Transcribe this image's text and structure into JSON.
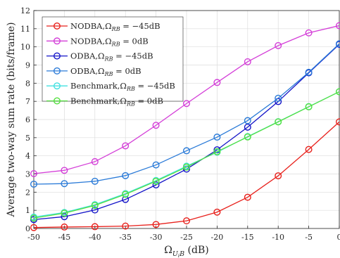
{
  "chart_data": {
    "type": "line",
    "xlabel": "Ω_{U_iB} (dB)",
    "xlabel_main": "Ω",
    "xlabel_sub": "U",
    "xlabel_subsub": "i",
    "xlabel_sub2": "B",
    "xlabel_unit": " (dB)",
    "ylabel": "Average two-way sum rate (bits/frame)",
    "xlim": [
      -50,
      0
    ],
    "ylim": [
      0,
      12
    ],
    "xticks": [
      -50,
      -45,
      -40,
      -35,
      -30,
      -25,
      -20,
      -15,
      -10,
      -5,
      0
    ],
    "yticks": [
      0,
      1,
      2,
      3,
      4,
      5,
      6,
      7,
      8,
      9,
      10,
      11,
      12
    ],
    "grid": true,
    "legend_position": "top-left",
    "x": [
      -50,
      -45,
      -40,
      -35,
      -30,
      -25,
      -20,
      -15,
      -10,
      -5,
      0
    ],
    "series": [
      {
        "name": "NODBA,Ω_{RB} = -45dB",
        "label_main": "NODBA,Ω",
        "label_sub": "RB",
        "label_tail": " = −45dB",
        "color": "#e8211c",
        "values": [
          0.05,
          0.08,
          0.1,
          0.13,
          0.22,
          0.42,
          0.9,
          1.72,
          2.9,
          4.35,
          5.87
        ]
      },
      {
        "name": "NODBA,Ω_{RB} = 0dB",
        "label_main": "NODBA,Ω",
        "label_sub": "RB",
        "label_tail": " = 0dB",
        "color": "#d43fd8",
        "values": [
          3.02,
          3.2,
          3.68,
          4.55,
          5.68,
          6.88,
          8.04,
          9.18,
          10.07,
          10.77,
          11.17
        ]
      },
      {
        "name": "ODBA,Ω_{RB} = -45dB",
        "label_main": "ODBA,Ω",
        "label_sub": "RB",
        "label_tail": " = −45dB",
        "color": "#1414c8",
        "values": [
          0.49,
          0.65,
          1.02,
          1.6,
          2.4,
          3.27,
          4.33,
          5.58,
          6.99,
          8.57,
          10.14
        ]
      },
      {
        "name": "ODBA,Ω_{RB} = 0dB",
        "label_main": "ODBA,Ω",
        "label_sub": "RB",
        "label_tail": " = 0dB",
        "color": "#2b7bd8",
        "values": [
          2.44,
          2.47,
          2.6,
          2.91,
          3.5,
          4.28,
          5.03,
          5.94,
          7.17,
          8.6,
          10.17
        ]
      },
      {
        "name": "Benchmark,Ω_{RB} = -45dB",
        "label_main": "Benchmark,Ω",
        "label_sub": "RB",
        "label_tail": " = −45dB",
        "color": "#40e0e0",
        "values": [
          0.63,
          0.88,
          1.31,
          1.92,
          2.64,
          3.43,
          4.2,
          5.06,
          5.88,
          6.71,
          7.53
        ]
      },
      {
        "name": "Benchmark,Ω_{RB} = 0dB",
        "label_main": "Benchmark,Ω",
        "label_sub": "RB",
        "label_tail": " = 0dB",
        "color": "#55e040",
        "values": [
          0.57,
          0.84,
          1.27,
          1.88,
          2.6,
          3.38,
          4.23,
          5.04,
          5.87,
          6.7,
          7.53
        ]
      }
    ]
  }
}
